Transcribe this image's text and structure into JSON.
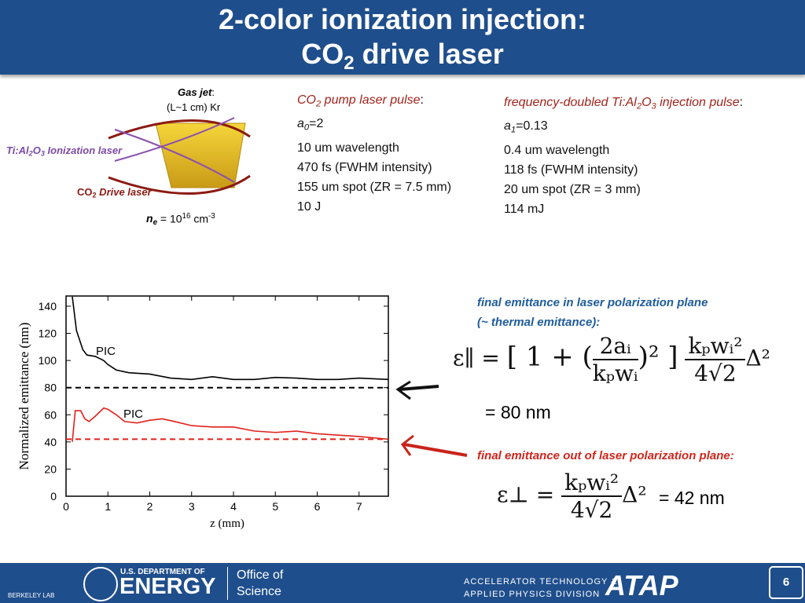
{
  "header": {
    "title_line1": "2-color ionization injection:",
    "title_line2": [
      "CO",
      "2",
      " drive laser"
    ]
  },
  "diagram": {
    "gas_jet": [
      "Gas jet",
      ":"
    ],
    "jet_length": "(L~1 cm) Kr",
    "ionization_laser": [
      "Ti:Al",
      "2",
      "O",
      "3",
      " Ionization laser"
    ],
    "drive_laser": [
      "CO",
      "2",
      " Drive laser"
    ],
    "density": [
      "n",
      "e",
      " = 10",
      "16",
      " cm",
      "-3"
    ]
  },
  "pump_pulse": {
    "heading": [
      "CO",
      "2",
      " pump laser pulse",
      ":"
    ],
    "a": [
      "a",
      "0",
      "=2"
    ],
    "lines": [
      "10 um wavelength",
      "470 fs (FWHM intensity)",
      "155 um spot (ZR = 7.5 mm)",
      "10 J"
    ]
  },
  "injection_pulse": {
    "heading": [
      "frequency-doubled Ti:Al",
      "2",
      "O",
      "3",
      " injection pulse",
      ":"
    ],
    "a": [
      "a",
      "1",
      "=0.13"
    ],
    "lines": [
      "0.4 um wavelength",
      "118 fs (FWHM intensity)",
      "20 um spot (ZR = 3 mm)",
      "114 mJ"
    ]
  },
  "chart_data": {
    "type": "line",
    "x_label": "z (mm)",
    "y_label": "Normalized emittance (nm)",
    "xlim": [
      0,
      7.7
    ],
    "ylim": [
      0,
      147.5
    ],
    "xticks": [
      0,
      1,
      2,
      3,
      4,
      5,
      6,
      7
    ],
    "yticks": [
      0,
      20,
      40,
      60,
      80,
      100,
      120,
      140
    ],
    "annotations": [
      "PIC",
      "PIC"
    ],
    "hlines": [
      {
        "value": 80,
        "color": "#000000"
      },
      {
        "value": 42,
        "color": "#e0201b"
      }
    ],
    "series": [
      {
        "color": "#000000",
        "x": [
          0.15,
          0.25,
          0.4,
          0.5,
          0.7,
          0.9,
          1.0,
          1.2,
          1.5,
          2.0,
          2.5,
          3.0,
          3.5,
          4.0,
          4.5,
          5.0,
          5.5,
          6.0,
          6.5,
          7.0,
          7.7
        ],
        "values": [
          147,
          122,
          108,
          104,
          103,
          100,
          97,
          93,
          91,
          90,
          87,
          86,
          88,
          86,
          86,
          87.5,
          87,
          86,
          86,
          87,
          86
        ]
      },
      {
        "color": "#e0201b",
        "x": [
          0.15,
          0.22,
          0.35,
          0.45,
          0.55,
          0.7,
          0.9,
          1.0,
          1.2,
          1.4,
          1.7,
          2.0,
          2.3,
          2.6,
          3.0,
          3.5,
          4.0,
          4.5,
          5.0,
          5.5,
          6.0,
          6.5,
          7.0,
          7.7
        ],
        "values": [
          40,
          63,
          63,
          57,
          55,
          59,
          65,
          64,
          60,
          55,
          54,
          56,
          57,
          55,
          52,
          51,
          51,
          48,
          47,
          48,
          46,
          45,
          44,
          42
        ]
      }
    ]
  },
  "emittance": {
    "parallel_heading": [
      "final emittance in laser polarization plane",
      "(~ thermal emittance):"
    ],
    "parallel_formula": {
      "lhs": "ε∥ =",
      "bracket_open": "[ 1 + (",
      "inner_num": "2aᵢ",
      "inner_den": "kₚwᵢ",
      "bracket_close": ")² ]",
      "num": "kₚwᵢ²",
      "den": "4√2",
      "tail": "Δ²"
    },
    "parallel_result": "= 80 nm",
    "perp_heading": "final emittance out of laser polarization plane:",
    "perp_formula": {
      "lhs": "ε⊥ =",
      "num": "kₚwᵢ²",
      "den": "4√2",
      "tail": "Δ²"
    },
    "perp_result": "= 42 nm"
  },
  "footer": {
    "berkeley": "BERKELEY LAB",
    "doe_line1": "U.S. DEPARTMENT OF",
    "doe_line2": "ENERGY",
    "office": [
      "Office of",
      "Science"
    ],
    "division": [
      "ACCELERATOR TECHNOLOGY &",
      "APPLIED PHYSICS DIVISION"
    ],
    "atap": "ATAP",
    "page": "6"
  }
}
